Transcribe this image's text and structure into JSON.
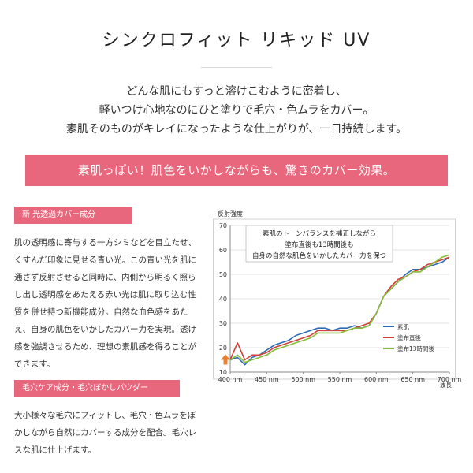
{
  "header": {
    "title": "シンクロフィット リキッド UV"
  },
  "intro": {
    "lines": [
      "どんな肌にもすっと溶けこむように密着し、",
      "軽いつけ心地なのにひと塗りで毛穴・色ムラをカバー。",
      "素肌そのものがキレイになったような仕上がりが、一日持続します。"
    ]
  },
  "banner": {
    "text": "素肌っぽい！肌色をいかしながらも、驚きのカバー効果。"
  },
  "section1": {
    "tag": "新 光透過カバー成分",
    "body": "肌の透明感に寄与する一方シミなどを目立たせ、くすんだ印象に見せる青い光。この青い光を肌に通さず反射させると同時に、内側から明るく照らし出し透明感をあたえる赤い光は肌に取り込む性質を併せ持つ新機能成分。自然な血色感をあたえ、自身の肌色をいかしたカバー力を実現。透け感を強調させるため、理想の素肌感を得ることができます。"
  },
  "section2": {
    "tag": "毛穴ケア成分・毛穴ぼかしパウダー",
    "body": "大小様々な毛穴にフィットし、毛穴・色ムラをぼかしながら自然にカバーする成分を配合。毛穴レスな肌に仕上げます。"
  },
  "chart_data": {
    "type": "line",
    "ylabel": "反射強度",
    "xlabel": "波長",
    "x_ticks": [
      "400 nm",
      "450 nm",
      "500 nm",
      "550 nm",
      "600 nm",
      "650 nm",
      "700 nm"
    ],
    "y_ticks": [
      10,
      20,
      30,
      40,
      50,
      60,
      70
    ],
    "xlim": [
      400,
      700
    ],
    "ylim": [
      10,
      70
    ],
    "annotation": [
      "素肌のトーンバランスを補正しながら",
      "塗布直後も13時間後も",
      "自身の自然な肌色をいかしたカバー力を保つ"
    ],
    "x": [
      400,
      410,
      420,
      430,
      440,
      450,
      460,
      470,
      480,
      490,
      500,
      510,
      520,
      530,
      540,
      550,
      560,
      570,
      580,
      590,
      600,
      610,
      620,
      630,
      640,
      650,
      660,
      670,
      680,
      690,
      700
    ],
    "series": [
      {
        "name": "素肌",
        "color": "#2e6db4",
        "values": [
          15,
          16,
          13,
          16,
          17,
          19,
          21,
          22,
          23,
          25,
          26,
          27,
          28,
          28,
          27,
          28,
          28,
          29,
          28,
          29,
          34,
          41,
          44,
          47,
          50,
          52,
          52,
          53,
          54,
          55,
          57
        ]
      },
      {
        "name": "塗布直後",
        "color": "#d0403a",
        "values": [
          15,
          22,
          15,
          17,
          17,
          18,
          20,
          21,
          22,
          23,
          24,
          25,
          27,
          27,
          27,
          27,
          27,
          28,
          29,
          30,
          34,
          41,
          45,
          48,
          49,
          51,
          52,
          54,
          55,
          56,
          57
        ]
      },
      {
        "name": "塗布13時間後",
        "color": "#86bc3a",
        "values": [
          15,
          17,
          14,
          15,
          16,
          17,
          19,
          20,
          21,
          22,
          23,
          24,
          26,
          26,
          26,
          26,
          27,
          28,
          28,
          29,
          34,
          41,
          44,
          47,
          49,
          51,
          51,
          53,
          55,
          57,
          58
        ]
      }
    ],
    "grid": true,
    "legend": "bottom-right",
    "colors": {
      "axis": "#8b8b8b",
      "grid": "#e3e3e3",
      "box": "#d3d3d3",
      "arrow": "#e8802f"
    }
  }
}
